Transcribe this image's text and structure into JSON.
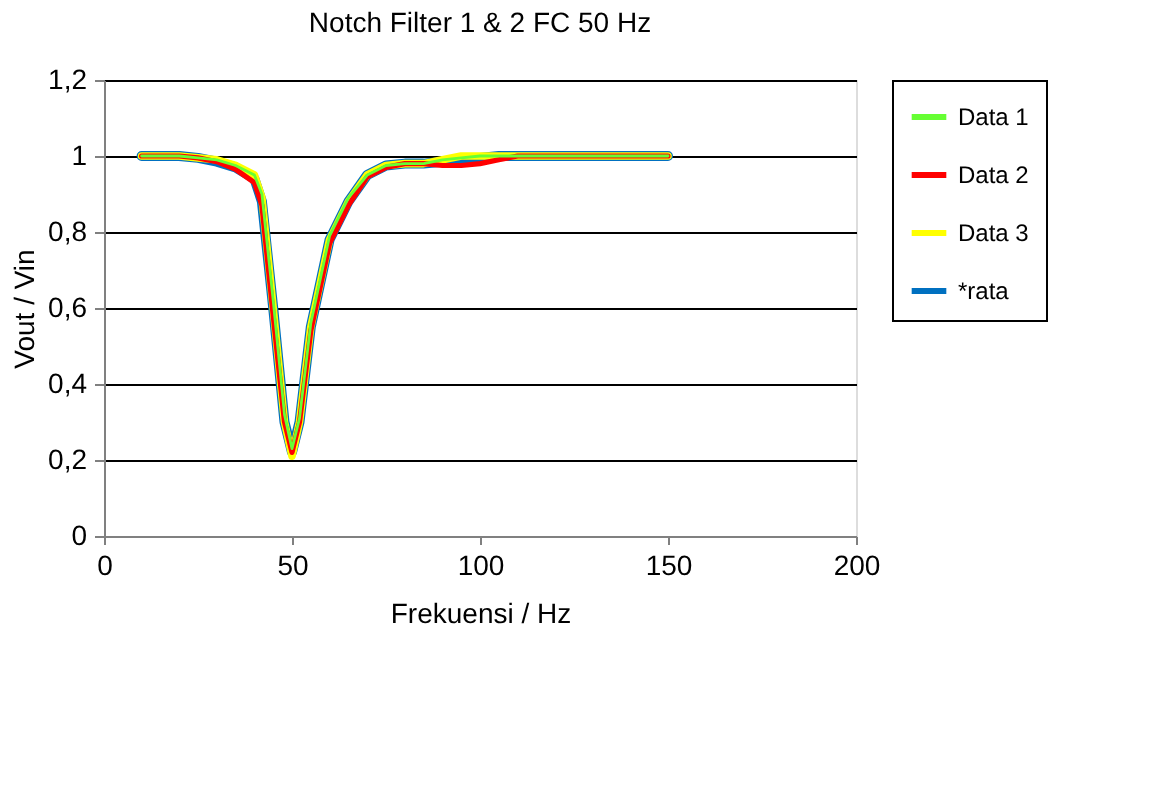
{
  "chart_data": {
    "type": "line",
    "title": "Notch Filter 1 & 2 FC 50 Hz",
    "xlabel": "Frekuensi / Hz",
    "ylabel": "Vout / Vin",
    "x": [
      10,
      15,
      20,
      25,
      30,
      35,
      40,
      42,
      45,
      48,
      50,
      52,
      55,
      60,
      65,
      70,
      75,
      80,
      85,
      90,
      95,
      100,
      105,
      110,
      120,
      130,
      140,
      150
    ],
    "series": [
      {
        "name": "Data 1",
        "color": "#66ff33",
        "values": [
          1,
          1,
          1,
          0.995,
          0.99,
          0.975,
          0.95,
          0.9,
          0.62,
          0.32,
          0.23,
          0.31,
          0.56,
          0.79,
          0.89,
          0.95,
          0.975,
          0.98,
          0.98,
          0.99,
          0.995,
          1,
          1,
          1,
          1,
          1,
          1,
          1
        ]
      },
      {
        "name": "Data 2",
        "color": "#ff0000",
        "values": [
          1,
          1,
          1,
          0.995,
          0.985,
          0.965,
          0.93,
          0.87,
          0.58,
          0.3,
          0.22,
          0.3,
          0.54,
          0.77,
          0.87,
          0.945,
          0.97,
          0.98,
          0.98,
          0.975,
          0.975,
          0.98,
          0.99,
          1,
          1,
          1,
          1,
          1
        ]
      },
      {
        "name": "Data 3",
        "color": "#ffff00",
        "values": [
          1,
          1,
          1,
          0.995,
          0.99,
          0.975,
          0.95,
          0.89,
          0.6,
          0.3,
          0.21,
          0.3,
          0.55,
          0.78,
          0.88,
          0.95,
          0.975,
          0.98,
          0.98,
          0.99,
          1,
          1,
          1,
          1,
          1,
          1,
          1,
          1
        ]
      },
      {
        "name": "*rata",
        "color": "#0070c0",
        "values": [
          1,
          1,
          1,
          0.995,
          0.985,
          0.97,
          0.94,
          0.88,
          0.6,
          0.3,
          0.22,
          0.3,
          0.55,
          0.78,
          0.88,
          0.95,
          0.975,
          0.98,
          0.98,
          0.985,
          0.99,
          0.995,
          1,
          1,
          1,
          1,
          1,
          1
        ]
      }
    ],
    "xlim": [
      0,
      200
    ],
    "xticks": [
      0,
      50,
      100,
      150,
      200
    ],
    "ylim": [
      0,
      1.2
    ],
    "yticks": [
      0,
      {
        "value": 0.2,
        "label": "0,2"
      },
      {
        "value": 0.4,
        "label": "0,4"
      },
      {
        "value": 0.6,
        "label": "0,6"
      },
      {
        "value": 0.8,
        "label": "0,8"
      },
      1,
      {
        "value": 1.2,
        "label": "1,2"
      }
    ],
    "grid": "y",
    "legend": "right",
    "marker": "none",
    "line_style": "solid"
  }
}
